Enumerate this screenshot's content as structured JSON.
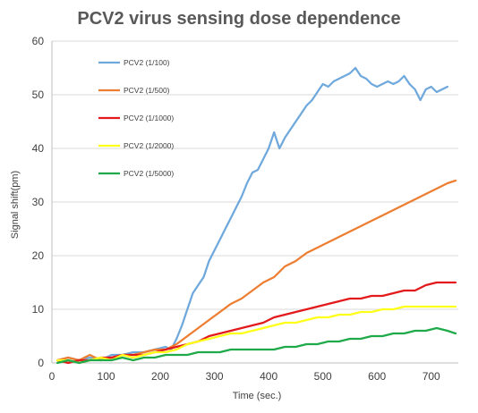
{
  "chart_data": {
    "type": "line",
    "title": "PCV2 virus sensing dose dependence",
    "xlabel": "Time (sec.)",
    "ylabel": "Signal shift(pm)",
    "xlim": [
      0,
      750
    ],
    "ylim": [
      0,
      60
    ],
    "xticks": [
      0,
      100,
      200,
      300,
      400,
      500,
      600,
      700
    ],
    "yticks": [
      0,
      10,
      20,
      30,
      40,
      50,
      60
    ],
    "grid": "horizontal",
    "legend_position": "top-left",
    "series": [
      {
        "name": "PCV2 (1/100)",
        "color": "#6fa8dc",
        "points": [
          [
            10,
            0.5
          ],
          [
            30,
            1.0
          ],
          [
            50,
            0.5
          ],
          [
            70,
            1.0
          ],
          [
            90,
            0.5
          ],
          [
            110,
            1.5
          ],
          [
            130,
            1.5
          ],
          [
            150,
            2.0
          ],
          [
            170,
            2.0
          ],
          [
            190,
            2.5
          ],
          [
            210,
            3.0
          ],
          [
            220,
            2.5
          ],
          [
            230,
            4.5
          ],
          [
            240,
            7.0
          ],
          [
            250,
            10.0
          ],
          [
            260,
            13.0
          ],
          [
            270,
            14.5
          ],
          [
            280,
            16.0
          ],
          [
            290,
            19.0
          ],
          [
            300,
            21.0
          ],
          [
            310,
            23.0
          ],
          [
            320,
            25.0
          ],
          [
            330,
            27.0
          ],
          [
            340,
            29.0
          ],
          [
            350,
            31.0
          ],
          [
            360,
            33.5
          ],
          [
            370,
            35.5
          ],
          [
            380,
            36.0
          ],
          [
            390,
            38.0
          ],
          [
            400,
            40.0
          ],
          [
            410,
            43.0
          ],
          [
            420,
            40.0
          ],
          [
            430,
            42.0
          ],
          [
            440,
            43.5
          ],
          [
            450,
            45.0
          ],
          [
            460,
            46.5
          ],
          [
            470,
            48.0
          ],
          [
            480,
            49.0
          ],
          [
            490,
            50.5
          ],
          [
            500,
            52.0
          ],
          [
            510,
            51.5
          ],
          [
            520,
            52.5
          ],
          [
            530,
            53.0
          ],
          [
            540,
            53.5
          ],
          [
            550,
            54.0
          ],
          [
            560,
            55.0
          ],
          [
            570,
            53.5
          ],
          [
            580,
            53.0
          ],
          [
            590,
            52.0
          ],
          [
            600,
            51.5
          ],
          [
            610,
            52.0
          ],
          [
            620,
            52.5
          ],
          [
            630,
            52.0
          ],
          [
            640,
            52.5
          ],
          [
            650,
            53.5
          ],
          [
            660,
            52.0
          ],
          [
            670,
            51.0
          ],
          [
            680,
            49.0
          ],
          [
            690,
            51.0
          ],
          [
            700,
            51.5
          ],
          [
            710,
            50.5
          ],
          [
            720,
            51.0
          ],
          [
            730,
            51.5
          ]
        ]
      },
      {
        "name": "PCV2 (1/500)",
        "color": "#ed7d31",
        "points": [
          [
            10,
            0.5
          ],
          [
            30,
            1.0
          ],
          [
            50,
            0.5
          ],
          [
            70,
            1.5
          ],
          [
            90,
            0.5
          ],
          [
            110,
            1.0
          ],
          [
            130,
            1.5
          ],
          [
            150,
            1.5
          ],
          [
            170,
            2.0
          ],
          [
            190,
            2.5
          ],
          [
            210,
            2.5
          ],
          [
            230,
            3.5
          ],
          [
            250,
            5.0
          ],
          [
            270,
            6.5
          ],
          [
            290,
            8.0
          ],
          [
            310,
            9.5
          ],
          [
            330,
            11.0
          ],
          [
            350,
            12.0
          ],
          [
            370,
            13.5
          ],
          [
            390,
            15.0
          ],
          [
            410,
            16.0
          ],
          [
            430,
            18.0
          ],
          [
            450,
            19.0
          ],
          [
            470,
            20.5
          ],
          [
            490,
            21.5
          ],
          [
            510,
            22.5
          ],
          [
            530,
            23.5
          ],
          [
            550,
            24.5
          ],
          [
            570,
            25.5
          ],
          [
            590,
            26.5
          ],
          [
            610,
            27.5
          ],
          [
            630,
            28.5
          ],
          [
            650,
            29.5
          ],
          [
            670,
            30.5
          ],
          [
            690,
            31.5
          ],
          [
            710,
            32.5
          ],
          [
            730,
            33.5
          ],
          [
            745,
            34.0
          ]
        ]
      },
      {
        "name": "PCV2 (1/1000)",
        "color": "#e31a1c",
        "points": [
          [
            10,
            0.5
          ],
          [
            30,
            0.0
          ],
          [
            50,
            0.5
          ],
          [
            70,
            0.5
          ],
          [
            90,
            1.0
          ],
          [
            110,
            1.0
          ],
          [
            130,
            1.5
          ],
          [
            150,
            1.5
          ],
          [
            170,
            1.5
          ],
          [
            190,
            2.0
          ],
          [
            210,
            2.5
          ],
          [
            230,
            3.0
          ],
          [
            250,
            3.5
          ],
          [
            270,
            4.0
          ],
          [
            290,
            5.0
          ],
          [
            310,
            5.5
          ],
          [
            330,
            6.0
          ],
          [
            350,
            6.5
          ],
          [
            370,
            7.0
          ],
          [
            390,
            7.5
          ],
          [
            410,
            8.5
          ],
          [
            430,
            9.0
          ],
          [
            450,
            9.5
          ],
          [
            470,
            10.0
          ],
          [
            490,
            10.5
          ],
          [
            510,
            11.0
          ],
          [
            530,
            11.5
          ],
          [
            550,
            12.0
          ],
          [
            570,
            12.0
          ],
          [
            590,
            12.5
          ],
          [
            610,
            12.5
          ],
          [
            630,
            13.0
          ],
          [
            650,
            13.5
          ],
          [
            670,
            13.5
          ],
          [
            690,
            14.5
          ],
          [
            710,
            15.0
          ],
          [
            730,
            15.0
          ],
          [
            745,
            15.0
          ]
        ]
      },
      {
        "name": "PCV2 (1/2000)",
        "color": "#ffff1a",
        "points": [
          [
            10,
            0.5
          ],
          [
            30,
            0.5
          ],
          [
            50,
            0.0
          ],
          [
            70,
            0.5
          ],
          [
            90,
            1.0
          ],
          [
            110,
            0.5
          ],
          [
            130,
            1.5
          ],
          [
            150,
            1.0
          ],
          [
            170,
            1.5
          ],
          [
            190,
            2.0
          ],
          [
            210,
            2.0
          ],
          [
            230,
            2.5
          ],
          [
            250,
            3.5
          ],
          [
            270,
            4.0
          ],
          [
            290,
            4.5
          ],
          [
            310,
            5.0
          ],
          [
            330,
            5.5
          ],
          [
            350,
            5.5
          ],
          [
            370,
            6.0
          ],
          [
            390,
            6.5
          ],
          [
            410,
            7.0
          ],
          [
            430,
            7.5
          ],
          [
            450,
            7.5
          ],
          [
            470,
            8.0
          ],
          [
            490,
            8.5
          ],
          [
            510,
            8.5
          ],
          [
            530,
            9.0
          ],
          [
            550,
            9.0
          ],
          [
            570,
            9.5
          ],
          [
            590,
            9.5
          ],
          [
            610,
            10.0
          ],
          [
            630,
            10.0
          ],
          [
            650,
            10.5
          ],
          [
            670,
            10.5
          ],
          [
            690,
            10.5
          ],
          [
            710,
            10.5
          ],
          [
            730,
            10.5
          ],
          [
            745,
            10.5
          ]
        ]
      },
      {
        "name": "PCV2 (1/5000)",
        "color": "#1faa4a",
        "points": [
          [
            10,
            0.0
          ],
          [
            30,
            0.5
          ],
          [
            50,
            0.0
          ],
          [
            70,
            0.5
          ],
          [
            90,
            0.5
          ],
          [
            110,
            0.5
          ],
          [
            130,
            1.0
          ],
          [
            150,
            0.5
          ],
          [
            170,
            1.0
          ],
          [
            190,
            1.0
          ],
          [
            210,
            1.5
          ],
          [
            230,
            1.5
          ],
          [
            250,
            1.5
          ],
          [
            270,
            2.0
          ],
          [
            290,
            2.0
          ],
          [
            310,
            2.0
          ],
          [
            330,
            2.5
          ],
          [
            350,
            2.5
          ],
          [
            370,
            2.5
          ],
          [
            390,
            2.5
          ],
          [
            410,
            2.5
          ],
          [
            430,
            3.0
          ],
          [
            450,
            3.0
          ],
          [
            470,
            3.5
          ],
          [
            490,
            3.5
          ],
          [
            510,
            4.0
          ],
          [
            530,
            4.0
          ],
          [
            550,
            4.5
          ],
          [
            570,
            4.5
          ],
          [
            590,
            5.0
          ],
          [
            610,
            5.0
          ],
          [
            630,
            5.5
          ],
          [
            650,
            5.5
          ],
          [
            670,
            6.0
          ],
          [
            690,
            6.0
          ],
          [
            710,
            6.5
          ],
          [
            730,
            6.0
          ],
          [
            745,
            5.5
          ]
        ]
      }
    ]
  }
}
